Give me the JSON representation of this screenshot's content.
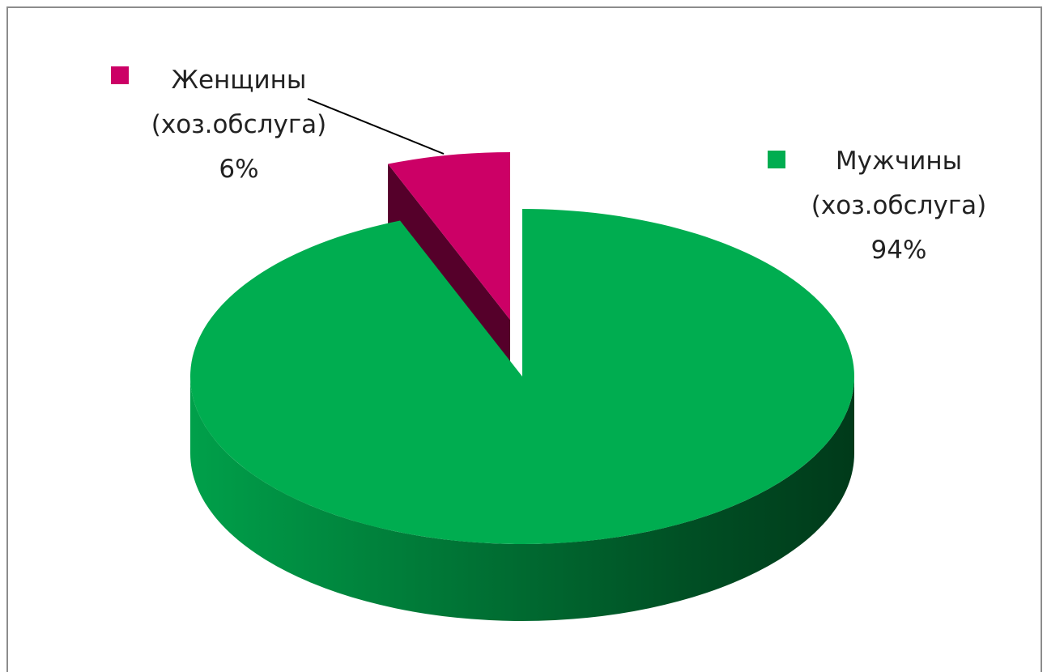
{
  "chart_data": {
    "type": "pie",
    "categories": [
      "Женщины (хоз.обслуга)",
      "Мужчины (хоз.обслуга)"
    ],
    "values": [
      6,
      94
    ],
    "value_labels": [
      "6%",
      "94%"
    ],
    "colors": [
      "#cc0066",
      "#00ad50"
    ]
  }
}
